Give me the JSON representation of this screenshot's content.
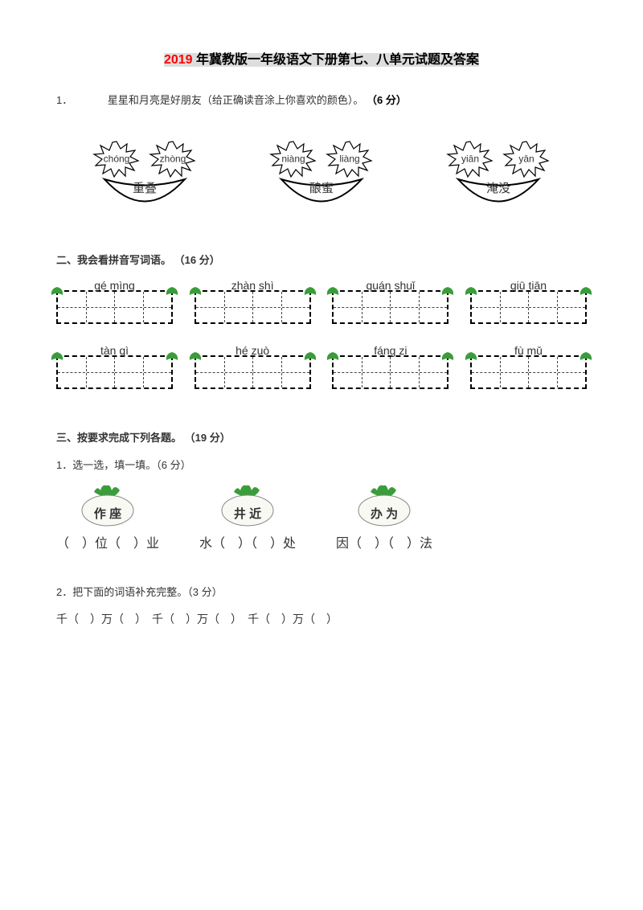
{
  "title": {
    "red": "2019",
    "black": " 年冀教版一年级语文下册第七、八单元试题及答案"
  },
  "q1": {
    "num": "1．",
    "text": "星星和月亮是好朋友（给正确读音涂上你喜欢的颜色）。",
    "points": "（6 分）"
  },
  "groups": [
    {
      "star1": "chóng",
      "star2": "zhòng",
      "moon": "重叠"
    },
    {
      "star1": "niàng",
      "star2": "liàng",
      "moon": "酿蜜"
    },
    {
      "star1": "yiān",
      "star2": "yān",
      "moon": "淹没"
    }
  ],
  "s2": {
    "heading": "二、我会看拼音写词语。",
    "points": "（16 分）"
  },
  "pinyin": [
    [
      "gé mìng",
      "zhàn shì",
      "quán shuǐ",
      "qiū tiān"
    ],
    [
      "tàn qì",
      "hé zuò",
      "fáng zi",
      "fù mǔ"
    ]
  ],
  "s3": {
    "heading": "三、按要求完成下列各题。",
    "points": "（19 分）",
    "sub1": "1．选一选，填一填。（6 分）",
    "sub2": "2．把下面的词语补充完整。（3 分）"
  },
  "radishes": [
    {
      "chars": "作 座",
      "blanks": "（　）位（　）业"
    },
    {
      "chars": "井 近",
      "blanks": "水（　）（　）处"
    },
    {
      "chars": "办 为",
      "blanks": "因（　）（　）法"
    }
  ],
  "fill": "千（　）万（　）　千（　）万（　）　千（　）万（　）",
  "colors": {
    "leaf": "#3a9d3a",
    "radish_body": "#f5f5f0",
    "radish_leaf": "#3a9d3a"
  }
}
